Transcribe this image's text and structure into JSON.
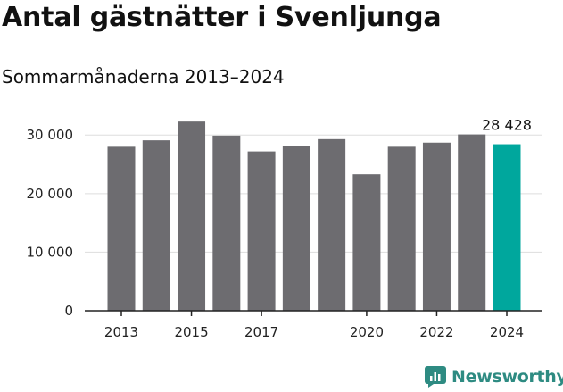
{
  "chart_data": {
    "type": "bar",
    "title": "Antal gästnätter i Svenljunga",
    "subtitle": "Sommarmånaderna 2013–2024",
    "categories": [
      "2013",
      "2014",
      "2015",
      "2016",
      "2017",
      "2018",
      "2019",
      "2020",
      "2021",
      "2022",
      "2023",
      "2024"
    ],
    "values": [
      28000,
      29100,
      32300,
      29900,
      27200,
      28100,
      29300,
      23300,
      28000,
      28700,
      30100,
      28428
    ],
    "x_tick_labels": [
      "2013",
      "2015",
      "2017",
      "2020",
      "2022",
      "2024"
    ],
    "y_ticks": [
      0,
      10000,
      20000,
      30000
    ],
    "y_tick_labels": [
      "0",
      "10 000",
      "20 000",
      "30 000"
    ],
    "ylim": [
      0,
      34000
    ],
    "grid": true,
    "highlight_index": 11,
    "highlight_label": "28 428",
    "colors": {
      "bar": "#6d6c70",
      "highlight": "#00a79d",
      "grid": "#dddddd",
      "axis": "#222222"
    }
  },
  "brand": {
    "name": "Newsworthy",
    "icon": "newsworthy-logo-icon",
    "color": "#2e8b82"
  }
}
